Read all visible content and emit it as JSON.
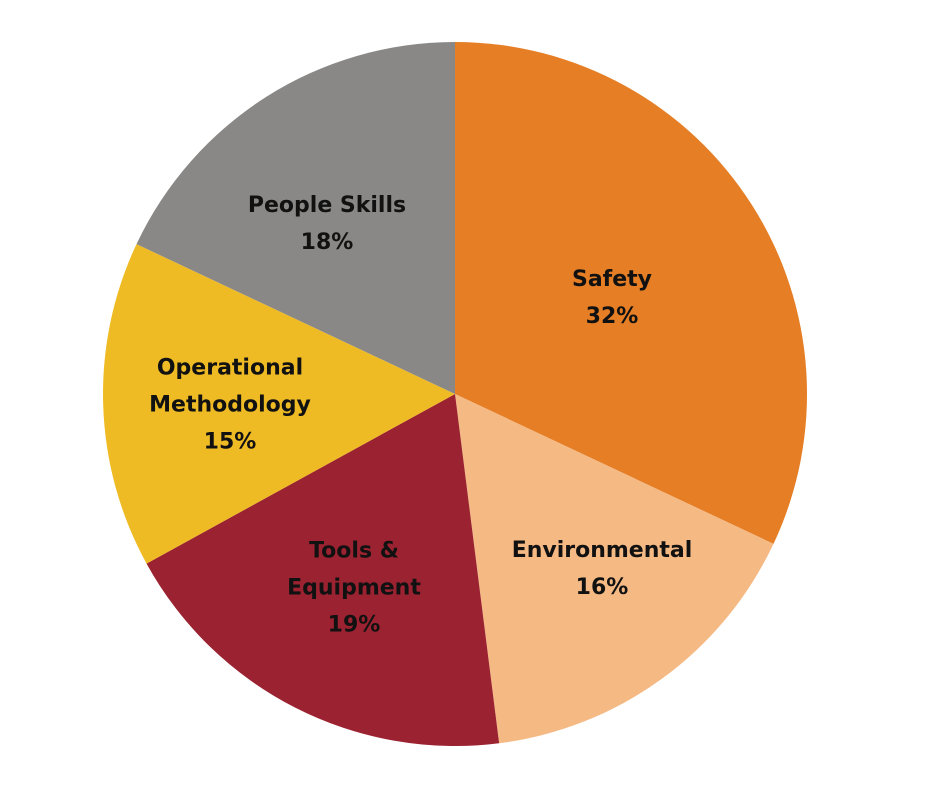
{
  "chart_data": {
    "type": "pie",
    "categories": [
      "Safety",
      "Environmental",
      "Tools & Equipment",
      "Operational Methodology",
      "People Skills"
    ],
    "values": [
      32,
      16,
      19,
      15,
      18
    ],
    "value_labels": [
      "32%",
      "16%",
      "19%",
      "15%",
      "18%"
    ],
    "colors": [
      "#e57e25",
      "#f5b984",
      "#9b2230",
      "#efbb25",
      "#8a8886"
    ]
  }
}
